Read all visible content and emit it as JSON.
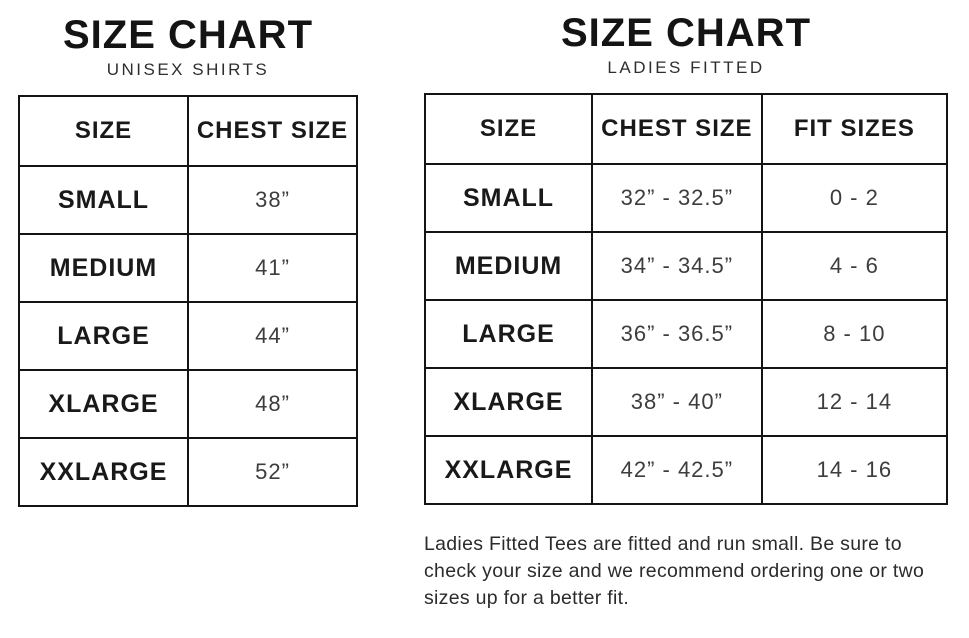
{
  "unisex": {
    "title": "SIZE CHART",
    "subtitle": "UNISEX SHIRTS",
    "table": {
      "headers": [
        "SIZE",
        "CHEST SIZE"
      ],
      "rows": [
        {
          "size": "SMALL",
          "chest": "38”"
        },
        {
          "size": "MEDIUM",
          "chest": "41”"
        },
        {
          "size": "LARGE",
          "chest": "44”"
        },
        {
          "size": "XLARGE",
          "chest": "48”"
        },
        {
          "size": "XXLARGE",
          "chest": "52”"
        }
      ]
    }
  },
  "ladies": {
    "title": "SIZE CHART",
    "subtitle": "LADIES FITTED",
    "table": {
      "headers": [
        "SIZE",
        "CHEST SIZE",
        "FIT SIZES"
      ],
      "rows": [
        {
          "size": "SMALL",
          "chest": "32” - 32.5”",
          "fit": "0 - 2"
        },
        {
          "size": "MEDIUM",
          "chest": "34” - 34.5”",
          "fit": "4 - 6"
        },
        {
          "size": "LARGE",
          "chest": "36” - 36.5”",
          "fit": "8 - 10"
        },
        {
          "size": "XLARGE",
          "chest": "38” - 40”",
          "fit": "12 - 14"
        },
        {
          "size": "XXLARGE",
          "chest": "42” - 42.5”",
          "fit": "14 - 16"
        }
      ]
    },
    "note": "Ladies Fitted Tees are fitted and run small. Be sure to check your size and we recommend ordering one or two sizes up for a better fit."
  },
  "colors": {
    "text": "#141414",
    "value_text": "#3d3d3d",
    "border": "#141414",
    "background": "#ffffff"
  }
}
